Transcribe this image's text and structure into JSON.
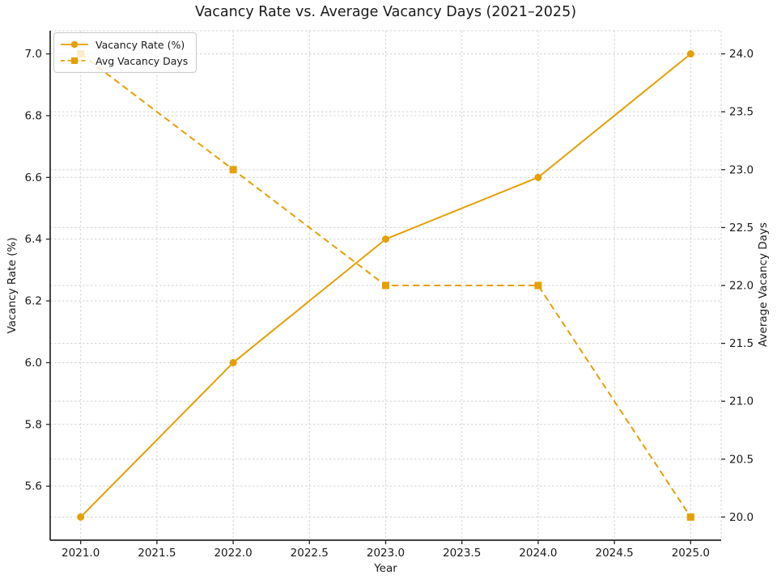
{
  "chart_data": {
    "type": "line",
    "title": "Vacancy Rate vs. Average Vacancy Days (2021–2025)",
    "xlabel": "Year",
    "ylabel_left": "Vacancy Rate (%)",
    "ylabel_right": "Average Vacancy Days",
    "x": [
      2021,
      2022,
      2023,
      2024,
      2025
    ],
    "series": [
      {
        "name": "Vacancy Rate (%)",
        "axis": "left",
        "values": [
          5.5,
          6.0,
          6.4,
          6.6,
          7.0
        ],
        "line_style": "solid",
        "marker": "circle"
      },
      {
        "name": "Avg Vacancy Days",
        "axis": "right",
        "values": [
          24.0,
          23.0,
          22.0,
          22.0,
          20.0
        ],
        "line_style": "dashed",
        "marker": "square"
      }
    ],
    "color": "#E69F00",
    "grid": true,
    "legend_position": "upper-left",
    "xlim": [
      2020.8,
      2025.2
    ],
    "ylim_left": [
      5.425,
      7.075
    ],
    "ylim_right": [
      19.8,
      24.2
    ],
    "xtick_labels": [
      "2021.0",
      "2021.5",
      "2022.0",
      "2022.5",
      "2023.0",
      "2023.5",
      "2024.0",
      "2024.5",
      "2025.0"
    ],
    "ytick_labels_left": [
      "5.6",
      "5.8",
      "6.0",
      "6.2",
      "6.4",
      "6.6",
      "6.8",
      "7.0"
    ],
    "ytick_labels_right": [
      "20.0",
      "20.5",
      "21.0",
      "21.5",
      "22.0",
      "22.5",
      "23.0",
      "23.5",
      "24.0"
    ]
  },
  "style": {
    "grid_color": "#d4d4d4",
    "spine_color": "#262626",
    "light_spine_color": "#d4d4d4",
    "text_color": "#1a1a1a",
    "background": "#ffffff"
  }
}
